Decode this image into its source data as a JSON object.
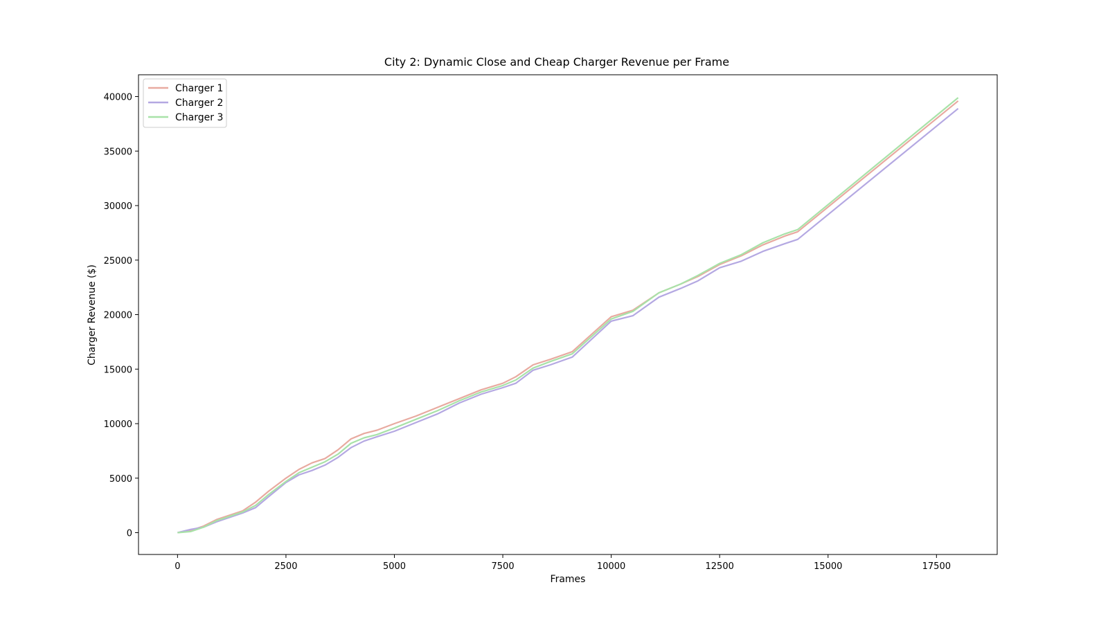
{
  "chart_data": {
    "type": "line",
    "title": "City 2: Dynamic Close and Cheap Charger Revenue per Frame",
    "xlabel": "Frames",
    "ylabel": "Charger Revenue ($)",
    "xlim": [
      -900,
      18900
    ],
    "ylim": [
      -2000,
      42000
    ],
    "xticks": [
      0,
      2500,
      5000,
      7500,
      10000,
      12500,
      15000,
      17500
    ],
    "yticks": [
      0,
      5000,
      10000,
      15000,
      20000,
      25000,
      30000,
      35000,
      40000
    ],
    "grid": false,
    "legend": "top-left",
    "series": [
      {
        "name": "Charger 1",
        "color": "#e8aaa0",
        "x": [
          0,
          300,
          600,
          900,
          1200,
          1500,
          1800,
          2100,
          2500,
          2800,
          3100,
          3400,
          3700,
          4000,
          4300,
          4600,
          5000,
          5500,
          6000,
          6500,
          7000,
          7500,
          7800,
          8200,
          8600,
          9100,
          10000,
          10500,
          11100,
          11600,
          12000,
          12500,
          13000,
          13500,
          14000,
          14300,
          18000
        ],
        "y": [
          0,
          200,
          600,
          1200,
          1600,
          2000,
          2800,
          3800,
          5000,
          5800,
          6400,
          6800,
          7600,
          8600,
          9100,
          9400,
          10000,
          10700,
          11500,
          12300,
          13100,
          13700,
          14300,
          15400,
          15900,
          16600,
          19800,
          20400,
          22000,
          22800,
          23500,
          24600,
          25400,
          26400,
          27200,
          27600,
          39600
        ]
      },
      {
        "name": "Charger 2",
        "color": "#b4a8e2",
        "x": [
          0,
          300,
          600,
          900,
          1200,
          1500,
          1800,
          2100,
          2500,
          2800,
          3100,
          3400,
          3700,
          4000,
          4300,
          4600,
          5000,
          5500,
          6000,
          6500,
          7000,
          7500,
          7800,
          8200,
          8600,
          9100,
          10000,
          10500,
          11100,
          11600,
          12000,
          12500,
          13000,
          13500,
          14000,
          14300,
          18000
        ],
        "y": [
          0,
          300,
          500,
          1000,
          1400,
          1800,
          2300,
          3300,
          4600,
          5300,
          5700,
          6200,
          6900,
          7800,
          8400,
          8800,
          9300,
          10100,
          10900,
          11900,
          12700,
          13300,
          13700,
          14900,
          15400,
          16100,
          19400,
          19900,
          21600,
          22400,
          23100,
          24300,
          24900,
          25800,
          26500,
          26900,
          38900
        ]
      },
      {
        "name": "Charger 3",
        "color": "#a8e2a8",
        "x": [
          0,
          300,
          600,
          900,
          1200,
          1500,
          1800,
          2100,
          2500,
          2800,
          3100,
          3400,
          3700,
          4000,
          4300,
          4600,
          5000,
          5500,
          6000,
          6500,
          7000,
          7500,
          7800,
          8200,
          8600,
          9100,
          10000,
          10500,
          11100,
          11600,
          12000,
          12500,
          13000,
          13500,
          14000,
          14300,
          18000
        ],
        "y": [
          0,
          100,
          500,
          1100,
          1500,
          1900,
          2500,
          3500,
          4700,
          5500,
          6000,
          6500,
          7200,
          8200,
          8700,
          9000,
          9600,
          10400,
          11200,
          12100,
          12900,
          13500,
          14000,
          15100,
          15700,
          16400,
          19600,
          20300,
          22000,
          22800,
          23600,
          24700,
          25500,
          26600,
          27400,
          27800,
          39900
        ]
      }
    ]
  }
}
